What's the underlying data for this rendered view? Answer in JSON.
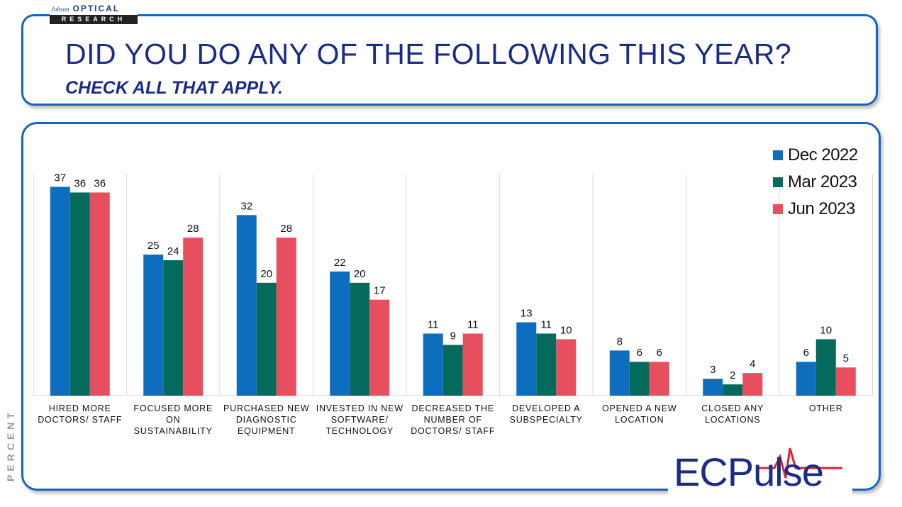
{
  "logo": {
    "small": "Jobson",
    "big": "OPTICAL",
    "bottom": "RESEARCH"
  },
  "header": {
    "title": "DID YOU DO ANY OF THE FOLLOWING THIS YEAR?",
    "subtitle": "CHECK ALL THAT APPLY."
  },
  "colors": {
    "border": "#1565b8",
    "title": "#1b2b88"
  },
  "brand": {
    "text": "ECPulse"
  },
  "chart_data": {
    "type": "bar",
    "ylabel": "PERCENT",
    "xlabel": "",
    "ylim": [
      0,
      42
    ],
    "grid": "vertical separators",
    "legend_position": "top-right",
    "categories": [
      [
        "HIRED MORE",
        "DOCTORS/ STAFF"
      ],
      [
        "FOCUSED MORE",
        "ON",
        "SUSTAINABILITY"
      ],
      [
        "PURCHASED NEW",
        "DIAGNOSTIC",
        "EQUIPMENT"
      ],
      [
        "INVESTED IN NEW",
        "SOFTWARE/",
        "TECHNOLOGY"
      ],
      [
        "DECREASED THE",
        "NUMBER OF",
        "DOCTORS/ STAFF"
      ],
      [
        "DEVELOPED A",
        "SUBSPECIALTY"
      ],
      [
        "OPENED A NEW",
        "LOCATION"
      ],
      [
        "CLOSED ANY",
        "LOCATIONS"
      ],
      [
        "OTHER"
      ]
    ],
    "series": [
      {
        "name": "Dec 2022",
        "color": "#0d6ebf",
        "values": [
          37,
          25,
          32,
          22,
          11,
          13,
          8,
          3,
          6
        ]
      },
      {
        "name": "Mar 2023",
        "color": "#046a5b",
        "values": [
          36,
          24,
          20,
          20,
          9,
          11,
          6,
          2,
          10
        ]
      },
      {
        "name": "Jun 2023",
        "color": "#e84f5e",
        "values": [
          36,
          28,
          28,
          17,
          11,
          10,
          6,
          4,
          5
        ]
      }
    ]
  }
}
